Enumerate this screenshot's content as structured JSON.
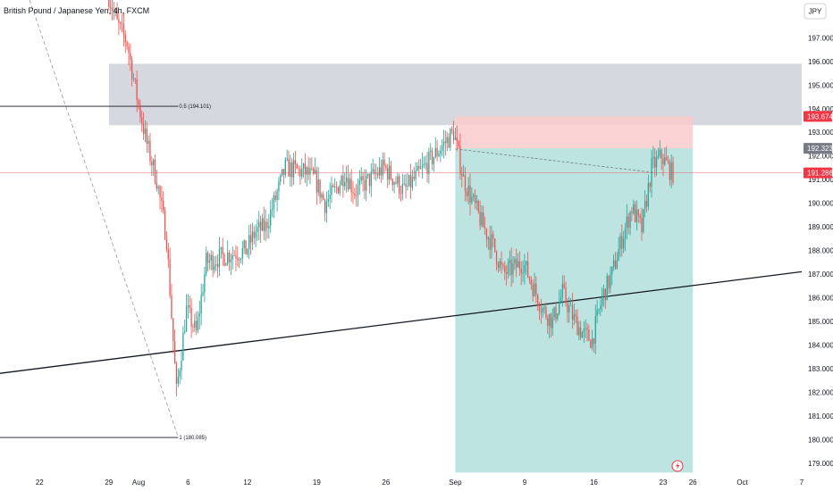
{
  "header": {
    "symbol_title": "British Pound / Japanese Yen, 4h, FXCM",
    "currency_button": "JPY"
  },
  "colors": {
    "up": "#26a69a",
    "down": "#ef5350",
    "zone_gray": "#d1d4dc",
    "stop_zone": "#fccbcd",
    "target_zone": "#b2dfdb",
    "target_badge": "#787b86",
    "stop_badge": "#f23645",
    "last_badge": "#f23645"
  },
  "chart_data": {
    "type": "candlestick",
    "title": "British Pound / Japanese Yen, 4h, FXCM",
    "y_axis": {
      "min": 178.5,
      "max": 198.6,
      "ticks": [
        179,
        180,
        181,
        182,
        183,
        184,
        185,
        186,
        187,
        188,
        189,
        190,
        191,
        192,
        193,
        194,
        195,
        196,
        197
      ],
      "tick_labels": [
        "179.000",
        "180.000",
        "181.000",
        "182.000",
        "183.000",
        "184.000",
        "185.000",
        "186.000",
        "187.000",
        "188.000",
        "189.000",
        "190.000",
        "191.000",
        "192.000",
        "193.000",
        "194.000",
        "195.000",
        "196.000",
        "197.000"
      ]
    },
    "x_axis": {
      "start": "2024-07-18",
      "end": "2024-10-07",
      "ticks": [
        {
          "date": "2024-07-22",
          "label": "22"
        },
        {
          "date": "2024-07-29",
          "label": "29"
        },
        {
          "date": "2024-08-01",
          "label": "Aug"
        },
        {
          "date": "2024-08-06",
          "label": "6"
        },
        {
          "date": "2024-08-12",
          "label": "12"
        },
        {
          "date": "2024-08-19",
          "label": "19"
        },
        {
          "date": "2024-08-26",
          "label": "26"
        },
        {
          "date": "2024-09-02",
          "label": "Sep"
        },
        {
          "date": "2024-09-09",
          "label": "9"
        },
        {
          "date": "2024-09-16",
          "label": "16"
        },
        {
          "date": "2024-09-23",
          "label": "23"
        },
        {
          "date": "2024-09-26",
          "label": "26"
        },
        {
          "date": "2024-10-01",
          "label": "Oct"
        },
        {
          "date": "2024-10-07",
          "label": "7"
        }
      ]
    },
    "price_path": [
      [
        "2024-07-29",
        199.0
      ],
      [
        "2024-07-30",
        197.6
      ],
      [
        "2024-07-31",
        196.8
      ],
      [
        "2024-08-01",
        194.5
      ],
      [
        "2024-08-02",
        192.5
      ],
      [
        "2024-08-03",
        191.0
      ],
      [
        "2024-08-04",
        188.5
      ],
      [
        "2024-08-05",
        182.0
      ],
      [
        "2024-08-06",
        185.5
      ],
      [
        "2024-08-07",
        184.5
      ],
      [
        "2024-08-08",
        187.5
      ],
      [
        "2024-08-10",
        187.8
      ],
      [
        "2024-08-12",
        188.0
      ],
      [
        "2024-08-13",
        188.8
      ],
      [
        "2024-08-14",
        189.0
      ],
      [
        "2024-08-15",
        190.2
      ],
      [
        "2024-08-16",
        191.5
      ],
      [
        "2024-08-18",
        191.3
      ],
      [
        "2024-08-19",
        191.0
      ],
      [
        "2024-08-20",
        190.0
      ],
      [
        "2024-08-21",
        190.5
      ],
      [
        "2024-08-22",
        191.3
      ],
      [
        "2024-08-23",
        190.5
      ],
      [
        "2024-08-26",
        191.5
      ],
      [
        "2024-08-27",
        191.0
      ],
      [
        "2024-08-28",
        190.5
      ],
      [
        "2024-08-29",
        191.0
      ],
      [
        "2024-08-30",
        191.5
      ],
      [
        "2024-09-01",
        192.5
      ],
      [
        "2024-09-02",
        193.0
      ],
      [
        "2024-09-03",
        191.0
      ],
      [
        "2024-09-04",
        190.0
      ],
      [
        "2024-09-05",
        189.0
      ],
      [
        "2024-09-06",
        188.2
      ],
      [
        "2024-09-07",
        187.0
      ],
      [
        "2024-09-09",
        187.5
      ],
      [
        "2024-09-10",
        186.5
      ],
      [
        "2024-09-11",
        185.5
      ],
      [
        "2024-09-12",
        185.0
      ],
      [
        "2024-09-13",
        186.2
      ],
      [
        "2024-09-14",
        185.2
      ],
      [
        "2024-09-15",
        184.5
      ],
      [
        "2024-09-16",
        184.2
      ],
      [
        "2024-09-17",
        186.0
      ],
      [
        "2024-09-18",
        187.0
      ],
      [
        "2024-09-19",
        188.5
      ],
      [
        "2024-09-20",
        189.8
      ],
      [
        "2024-09-21",
        188.9
      ],
      [
        "2024-09-22",
        191.5
      ],
      [
        "2024-09-23",
        192.0
      ],
      [
        "2024-09-24",
        191.3
      ]
    ],
    "annotations": {
      "fib_levels": [
        {
          "label": "0.5 (194.101)",
          "value": 194.101,
          "from": "2024-07-18",
          "to": "2024-08-05"
        },
        {
          "label": "1 (180.085)",
          "value": 180.085,
          "from": "2024-07-18",
          "to": "2024-08-05"
        }
      ],
      "fib_diagonal": {
        "from": [
          "2024-07-21",
          198.6
        ],
        "to": [
          "2024-08-05",
          180.1
        ]
      },
      "gray_zone": {
        "from": "2024-07-29",
        "to": "2024-10-07",
        "low": 193.3,
        "high": 195.9
      },
      "trendline": {
        "from": [
          "2024-07-18",
          182.8
        ],
        "to": [
          "2024-10-07",
          187.1
        ]
      },
      "position": {
        "from": "2024-09-02",
        "to": "2024-09-26",
        "entry": 192.323,
        "stop": 193.674,
        "target_bottom": 178.6,
        "dashed_from": [
          "2024-09-02",
          192.3
        ],
        "dashed_to": [
          "2024-09-22",
          191.3
        ]
      },
      "current_price": 191.286
    },
    "price_labels": [
      {
        "text": "193.674",
        "value": 193.674,
        "kind": "stop"
      },
      {
        "text": "192.323",
        "value": 192.323,
        "kind": "target"
      },
      {
        "text": "191.286",
        "value": 191.286,
        "kind": "last"
      }
    ]
  }
}
